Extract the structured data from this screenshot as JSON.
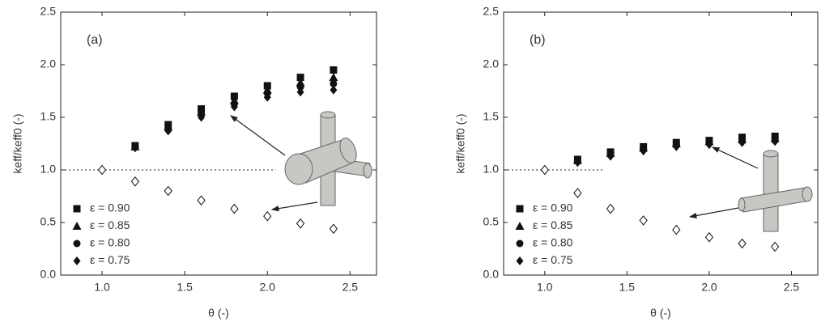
{
  "chart_data": [
    {
      "type": "scatter",
      "annotation": "(a)",
      "xlabel": "θ (-)",
      "ylabel": "keff/keff0 (-)",
      "xlim": [
        0.75,
        2.66
      ],
      "ylim": [
        0,
        2.5
      ],
      "xticks": [
        {
          "value": 1,
          "label": "1.0"
        },
        {
          "value": 1.5,
          "label": "1.5"
        },
        {
          "value": 2,
          "label": "2.0"
        },
        {
          "value": 2.5,
          "label": "2.5"
        }
      ],
      "yticks": [
        {
          "value": 0,
          "label": "0.0"
        },
        {
          "value": 0.5,
          "label": "0.5"
        },
        {
          "value": 1,
          "label": "1.0"
        },
        {
          "value": 1.5,
          "label": "1.5"
        },
        {
          "value": 2,
          "label": "2.0"
        },
        {
          "value": 2.5,
          "label": "2.5"
        }
      ],
      "hline": 1,
      "legend": "lower left",
      "series": [
        {
          "name": "ε = 0.90",
          "marker": "square",
          "color": "#111",
          "x": [
            1.2,
            1.4,
            1.6,
            1.8,
            2.0,
            2.2,
            2.4
          ],
          "values": [
            1.23,
            1.43,
            1.58,
            1.7,
            1.8,
            1.88,
            1.95
          ]
        },
        {
          "name": "ε = 0.85",
          "marker": "triangle",
          "color": "#111",
          "x": [
            1.2,
            1.4,
            1.6,
            1.8,
            2.0,
            2.2,
            2.4
          ],
          "values": [
            1.22,
            1.41,
            1.55,
            1.66,
            1.76,
            1.83,
            1.88
          ]
        },
        {
          "name": "ε = 0.80",
          "marker": "circle",
          "color": "#111",
          "x": [
            1.2,
            1.4,
            1.6,
            1.8,
            2.0,
            2.2,
            2.4
          ],
          "values": [
            1.22,
            1.39,
            1.53,
            1.63,
            1.73,
            1.79,
            1.82
          ]
        },
        {
          "name": "ε = 0.75",
          "marker": "diamond",
          "color": "#111",
          "x": [
            1.2,
            1.4,
            1.6,
            1.8,
            2.0,
            2.2,
            2.4
          ],
          "values": [
            1.21,
            1.37,
            1.5,
            1.6,
            1.69,
            1.74,
            1.76
          ]
        },
        {
          "marker": "open-diamond",
          "color": "#111",
          "x": [
            1.0,
            1.2,
            1.4,
            1.6,
            1.8,
            2.0,
            2.2,
            2.4
          ],
          "values": [
            1.0,
            0.89,
            0.8,
            0.71,
            0.63,
            0.56,
            0.49,
            0.44
          ]
        }
      ]
    },
    {
      "type": "scatter",
      "annotation": "(b)",
      "xlabel": "θ (-)",
      "ylabel": "keff/keff0 (-)",
      "xlim": [
        0.75,
        2.66
      ],
      "ylim": [
        0,
        2.5
      ],
      "xticks": [
        {
          "value": 1,
          "label": "1.0"
        },
        {
          "value": 1.5,
          "label": "1.5"
        },
        {
          "value": 2,
          "label": "2.0"
        },
        {
          "value": 2.5,
          "label": "2.5"
        }
      ],
      "yticks": [
        {
          "value": 0,
          "label": "0.0"
        },
        {
          "value": 0.5,
          "label": "0.5"
        },
        {
          "value": 1,
          "label": "1.0"
        },
        {
          "value": 1.5,
          "label": "1.5"
        },
        {
          "value": 2,
          "label": "2.0"
        },
        {
          "value": 2.5,
          "label": "2.5"
        }
      ],
      "hline": 1,
      "legend": "lower left",
      "series": [
        {
          "name": "ε = 0.90",
          "marker": "square",
          "color": "#111",
          "x": [
            1.2,
            1.4,
            1.6,
            1.8,
            2.0,
            2.2,
            2.4
          ],
          "values": [
            1.1,
            1.17,
            1.22,
            1.26,
            1.28,
            1.31,
            1.32
          ]
        },
        {
          "name": "ε = 0.85",
          "marker": "triangle",
          "color": "#111",
          "x": [
            1.2,
            1.4,
            1.6,
            1.8,
            2.0,
            2.2,
            2.4
          ],
          "values": [
            1.09,
            1.16,
            1.21,
            1.25,
            1.27,
            1.29,
            1.3
          ]
        },
        {
          "name": "ε = 0.80",
          "marker": "circle",
          "color": "#111",
          "x": [
            1.2,
            1.4,
            1.6,
            1.8,
            2.0,
            2.2,
            2.4
          ],
          "values": [
            1.08,
            1.15,
            1.2,
            1.24,
            1.26,
            1.28,
            1.28
          ]
        },
        {
          "name": "ε = 0.75",
          "marker": "diamond",
          "color": "#111",
          "x": [
            1.2,
            1.4,
            1.6,
            1.8,
            2.0,
            2.2,
            2.4
          ],
          "values": [
            1.07,
            1.13,
            1.18,
            1.22,
            1.24,
            1.26,
            1.27
          ]
        },
        {
          "marker": "open-diamond",
          "color": "#111",
          "x": [
            1.0,
            1.2,
            1.4,
            1.6,
            1.8,
            2.0,
            2.2,
            2.4
          ],
          "values": [
            1.0,
            0.78,
            0.63,
            0.52,
            0.43,
            0.36,
            0.3,
            0.27
          ]
        }
      ]
    }
  ]
}
